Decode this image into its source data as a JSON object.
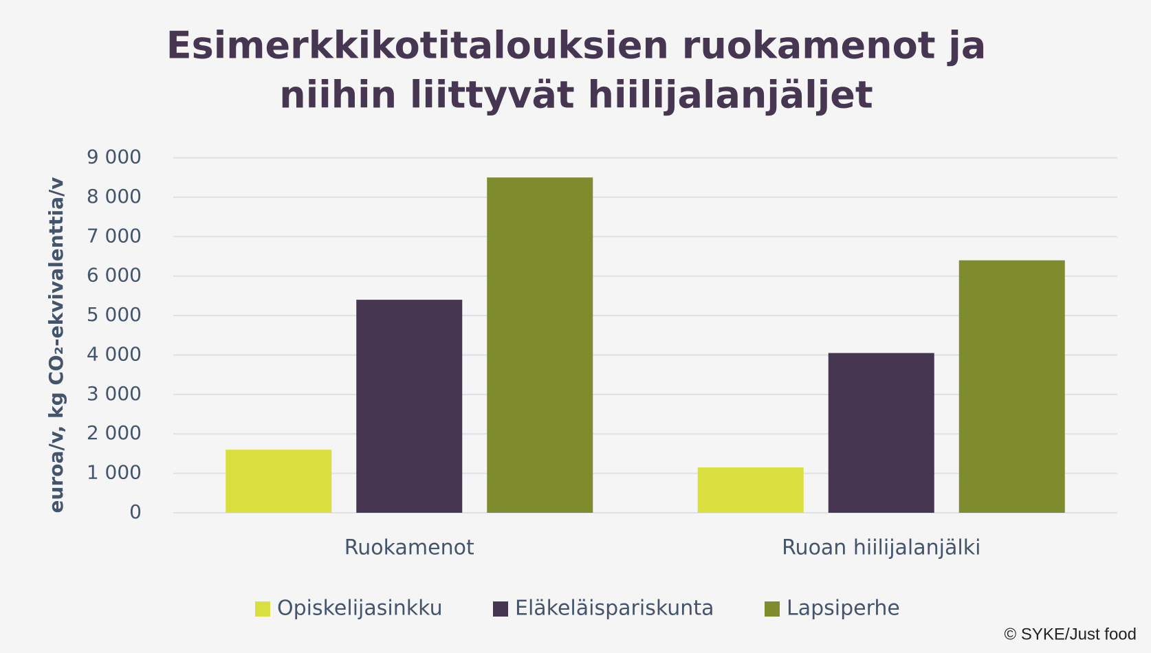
{
  "chart_data": {
    "type": "bar",
    "title": [
      "Esimerkkikotitalouksien ruokamenot ja",
      "niihin liittyvät hiilijalanjäljet"
    ],
    "ylabel": "euroa/v, kg CO₂-ekvivalenttia/v",
    "categories": [
      "Ruokamenot",
      "Ruoan hiilijalanjälki"
    ],
    "series": [
      {
        "name": "Opiskelijasinkku",
        "color": "#d9df3f",
        "values": [
          1600,
          1150
        ]
      },
      {
        "name": "Eläkeläispariskunta",
        "color": "#463651",
        "values": [
          5400,
          4050
        ]
      },
      {
        "name": "Lapsiperhe",
        "color": "#7f8c2e",
        "values": [
          8500,
          6400
        ]
      }
    ],
    "ylim": [
      0,
      9000
    ],
    "yticks": [
      0,
      {
        "value": 1000,
        "label": "1 000"
      },
      {
        "value": 2000,
        "label": "2 000"
      },
      {
        "value": 3000,
        "label": "3 000"
      },
      {
        "value": 4000,
        "label": "4 000"
      },
      {
        "value": 5000,
        "label": "5 000"
      },
      {
        "value": 6000,
        "label": "6 000"
      },
      {
        "value": 7000,
        "label": "7 000"
      },
      {
        "value": 8000,
        "label": "8 000"
      },
      {
        "value": 9000,
        "label": "9 000"
      }
    ],
    "grid": true,
    "legend": "bottom",
    "source": "© SYKE/Just food"
  }
}
